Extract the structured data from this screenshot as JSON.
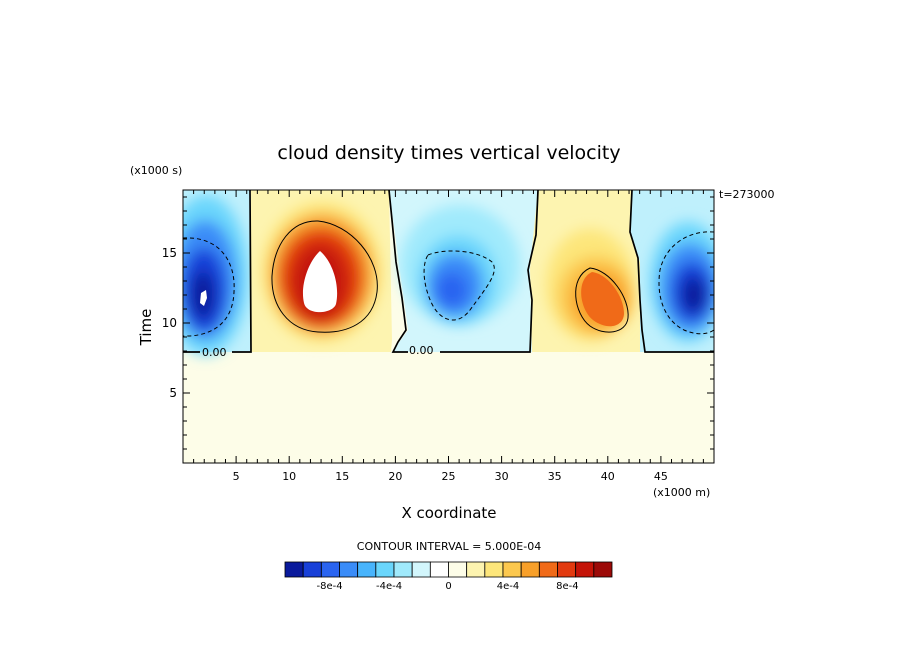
{
  "chart_data": {
    "type": "heatmap",
    "title": "cloud density times vertical velocity",
    "xlabel": "X coordinate",
    "ylabel": "Time",
    "x_units": "(x1000 m)",
    "y_units": "(x1000 s)",
    "time_stamp": "t=273000",
    "xlim": [
      0,
      50
    ],
    "ylim": [
      0,
      19.5
    ],
    "xticks": [
      5,
      10,
      15,
      20,
      25,
      30,
      35,
      40,
      45
    ],
    "yticks": [
      5,
      10,
      15
    ],
    "contour_interval_text": "CONTOUR INTERVAL = 5.000E-04",
    "zero_contour_labels": [
      "0.00",
      "0.00"
    ],
    "colorbar": {
      "tick_labels": [
        "-8e-4",
        "-4e-4",
        "0",
        "4e-4",
        "8e-4"
      ],
      "tick_values": [
        -0.0008,
        -0.0004,
        0,
        0.0004,
        0.0008
      ],
      "vmin": -0.0011,
      "vmax": 0.0011,
      "colors": [
        "#0a1a9c",
        "#1840d8",
        "#2a64f0",
        "#3a8cf8",
        "#48b4fc",
        "#6ad6fc",
        "#a0eafc",
        "#d2f6fc",
        "#ffffff",
        "#fdfde8",
        "#fdf4b0",
        "#fde67a",
        "#fcc84e",
        "#f8a02a",
        "#f06a18",
        "#e23a10",
        "#c41408",
        "#9c0a08"
      ]
    },
    "features": [
      {
        "sign": "negative",
        "x_center": 2.0,
        "y_center": 12.5,
        "peak": -0.0012
      },
      {
        "sign": "positive",
        "x_center": 12.6,
        "y_center": 13.2,
        "peak": 0.0012
      },
      {
        "sign": "negative",
        "x_center": 26.0,
        "y_center": 12.8,
        "peak": -0.0007
      },
      {
        "sign": "positive",
        "x_center": 39.3,
        "y_center": 12.2,
        "peak": 0.0008
      },
      {
        "sign": "negative",
        "x_center": 48.5,
        "y_center": 12.6,
        "peak": -0.0011
      }
    ]
  }
}
